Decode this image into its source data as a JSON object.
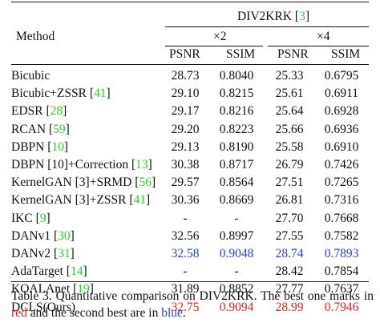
{
  "table": {
    "method_header": "Method",
    "dataset": "DIV2KRK",
    "dataset_ref": "3",
    "scales": [
      "×2",
      "×4"
    ],
    "metrics": [
      "PSNR",
      "SSIM",
      "PSNR",
      "SSIM"
    ],
    "rows": [
      {
        "method": "Bicubic",
        "cites": [],
        "values": [
          "28.73",
          "0.8040",
          "25.33",
          "0.6795"
        ],
        "ranks": [
          "",
          "",
          "",
          ""
        ]
      },
      {
        "method": "Bicubic+ZSSR",
        "cites": [
          "41"
        ],
        "values": [
          "29.10",
          "0.8215",
          "25.61",
          "0.6911"
        ],
        "ranks": [
          "",
          "",
          "",
          ""
        ]
      },
      {
        "method": "EDSR",
        "cites": [
          "28"
        ],
        "values": [
          "29.17",
          "0.8216",
          "25.64",
          "0.6928"
        ],
        "ranks": [
          "",
          "",
          "",
          ""
        ]
      },
      {
        "method": "RCAN",
        "cites": [
          "59"
        ],
        "values": [
          "29.20",
          "0.8223",
          "25.66",
          "0.6936"
        ],
        "ranks": [
          "",
          "",
          "",
          ""
        ]
      },
      {
        "method": "DBPN",
        "cites": [
          "10"
        ],
        "values": [
          "29.13",
          "0.8190",
          "25.58",
          "0.6910"
        ],
        "ranks": [
          "",
          "",
          "",
          ""
        ]
      },
      {
        "method": "DBPN [10]+Correction",
        "cites": [
          "13"
        ],
        "values": [
          "30.38",
          "0.8717",
          "26.79",
          "0.7426"
        ],
        "ranks": [
          "",
          "",
          "",
          ""
        ]
      },
      {
        "method": "KernelGAN [3]+SRMD",
        "cites": [
          "56"
        ],
        "values": [
          "29.57",
          "0.8564",
          "27.51",
          "0.7265"
        ],
        "ranks": [
          "",
          "",
          "",
          ""
        ]
      },
      {
        "method": "KernelGAN [3]+ZSSR",
        "cites": [
          "41"
        ],
        "values": [
          "30.36",
          "0.8669",
          "26.81",
          "0.7316"
        ],
        "ranks": [
          "",
          "",
          "",
          ""
        ]
      },
      {
        "method": "IKC",
        "cites": [
          "9"
        ],
        "values": [
          "-",
          "-",
          "27.70",
          "0.7668"
        ],
        "ranks": [
          "",
          "",
          "",
          ""
        ]
      },
      {
        "method": "DANv1",
        "cites": [
          "30"
        ],
        "values": [
          "32.56",
          "0.8997",
          "27.55",
          "0.7582"
        ],
        "ranks": [
          "",
          "",
          "",
          ""
        ]
      },
      {
        "method": "DANv2",
        "cites": [
          "31"
        ],
        "values": [
          "32.58",
          "0.9048",
          "28.74",
          "0.7893"
        ],
        "ranks": [
          "blue",
          "blue",
          "blue",
          "blue"
        ]
      },
      {
        "method": "AdaTarget",
        "cites": [
          "14"
        ],
        "values": [
          "-",
          "-",
          "28.42",
          "0.7854"
        ],
        "ranks": [
          "",
          "",
          "",
          ""
        ]
      },
      {
        "method": "KOALAnet",
        "cites": [
          "19"
        ],
        "values": [
          "31.89",
          "0.8852",
          "27.77",
          "0.7637"
        ],
        "ranks": [
          "",
          "",
          "",
          ""
        ]
      },
      {
        "method": "DCLS(Ours)",
        "cites": [],
        "values": [
          "32.75",
          "0.9094",
          "28.99",
          "0.7946"
        ],
        "ranks": [
          "red",
          "red",
          "red",
          "red"
        ]
      }
    ]
  },
  "caption": {
    "label": "Table 3.",
    "text": "Quantitative comparison on DIV2KRK. The best one marks in",
    "red_word": "red",
    "middle": "and the second best are in",
    "blue_word": "blue",
    "end": "."
  },
  "colors": {
    "best": "#e8231f",
    "second": "#2b3fe0",
    "citation": "#33cc33"
  }
}
